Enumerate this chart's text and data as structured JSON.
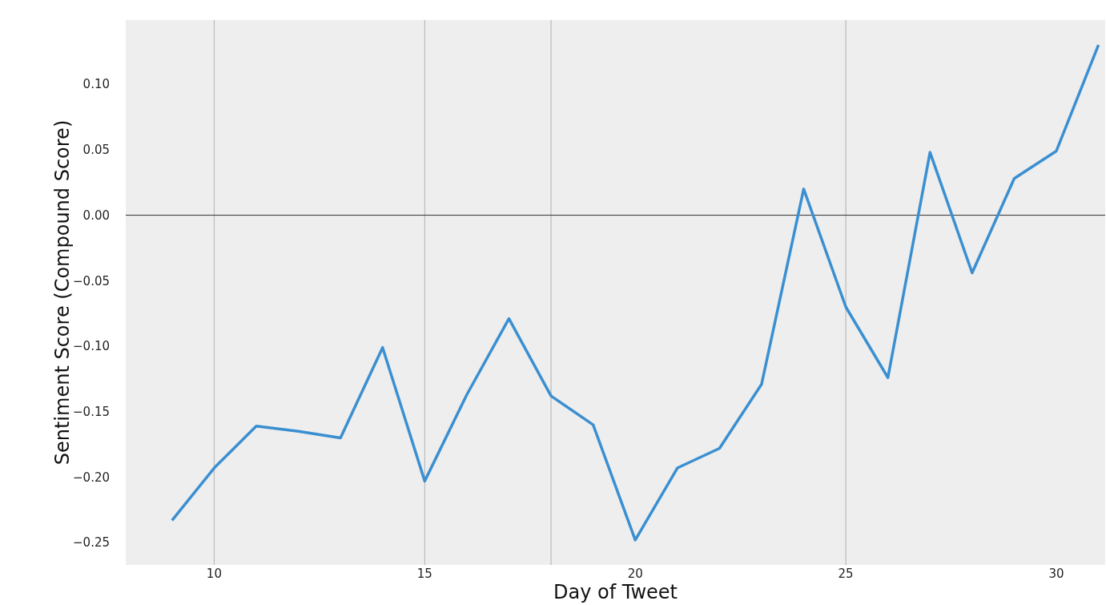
{
  "chart_data": {
    "type": "line",
    "xlabel": "Day of Tweet",
    "ylabel": "Sentiment Score (Compound Score)",
    "x": [
      9,
      10,
      11,
      12,
      13,
      14,
      15,
      16,
      17,
      18,
      19,
      20,
      21,
      22,
      23,
      24,
      25,
      26,
      27,
      28,
      29,
      30,
      31
    ],
    "series": [
      {
        "color": "#3a8fd1",
        "values": [
          -0.233,
          -0.193,
          -0.161,
          -0.165,
          -0.17,
          -0.101,
          -0.203,
          -0.137,
          -0.079,
          -0.138,
          -0.16,
          -0.248,
          -0.193,
          -0.178,
          -0.129,
          0.02,
          -0.07,
          -0.124,
          0.048,
          -0.044,
          0.028,
          0.049,
          0.13
        ]
      }
    ],
    "xlim": [
      7.9,
      31.16
    ],
    "ylim": [
      -0.267,
      0.149
    ],
    "xticks": [
      10,
      15,
      20,
      25,
      30
    ],
    "yticks": [
      {
        "value": -0.25,
        "label": "−0.25"
      },
      {
        "value": -0.2,
        "label": "−0.20"
      },
      {
        "value": -0.15,
        "label": "−0.15"
      },
      {
        "value": -0.1,
        "label": "−0.10"
      },
      {
        "value": -0.05,
        "label": "−0.05"
      },
      {
        "value": 0,
        "label": "0.00"
      },
      {
        "value": 0.05,
        "label": "0.05"
      },
      {
        "value": 0.1,
        "label": "0.10"
      }
    ],
    "ref_lines": [
      {
        "axis": "x",
        "value": 10,
        "color": "#b0b0b0"
      },
      {
        "axis": "x",
        "value": 15,
        "color": "#b0b0b0"
      },
      {
        "axis": "x",
        "value": 18,
        "color": "#b0b0b0"
      },
      {
        "axis": "x",
        "value": 25,
        "color": "#b0b0b0"
      },
      {
        "axis": "y",
        "value": 0,
        "color": "#333333"
      }
    ],
    "line_style": "solid",
    "marker": "none"
  }
}
